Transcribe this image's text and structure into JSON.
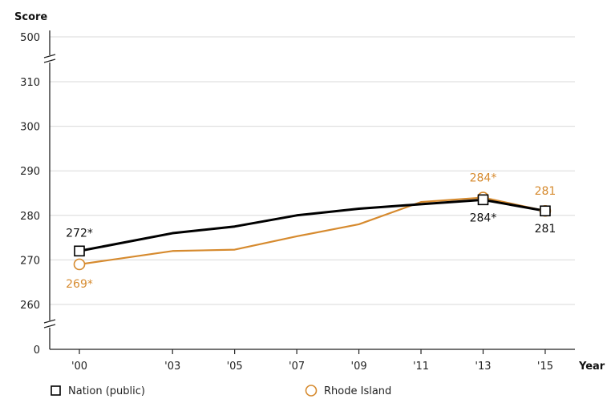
{
  "chart_data": {
    "type": "line",
    "ylabel": "Score",
    "xlabel": "Year",
    "x": [
      "'00",
      "'03",
      "'05",
      "'07",
      "'09",
      "'11",
      "'13",
      "'15"
    ],
    "x_years": [
      2000,
      2003,
      2005,
      2007,
      2009,
      2011,
      2013,
      2015
    ],
    "y_axis_ticks": [
      "0",
      "260",
      "270",
      "280",
      "290",
      "300",
      "310",
      "500"
    ],
    "y_range_shown": [
      255,
      315
    ],
    "axis_breaks": [
      "between 0 and 260",
      "between 310 and 500"
    ],
    "series": [
      {
        "name": "Nation (public)",
        "color": "#000000",
        "marker": "square",
        "values": [
          272,
          276,
          277.5,
          280,
          281.5,
          282.5,
          283.5,
          281
        ],
        "labels": [
          {
            "x": "'00",
            "text": "272*"
          },
          {
            "x": "'13",
            "text": "284*"
          },
          {
            "x": "'15",
            "text": "281"
          }
        ]
      },
      {
        "name": "Rhode Island",
        "color": "#d68a2e",
        "marker": "circle",
        "values": [
          269,
          272,
          272.3,
          275.3,
          278,
          283,
          284,
          281
        ],
        "labels": [
          {
            "x": "'00",
            "text": "269*"
          },
          {
            "x": "'13",
            "text": "284*"
          },
          {
            "x": "'15",
            "text": "281"
          }
        ]
      }
    ],
    "grid": true,
    "legend": "bottom"
  }
}
